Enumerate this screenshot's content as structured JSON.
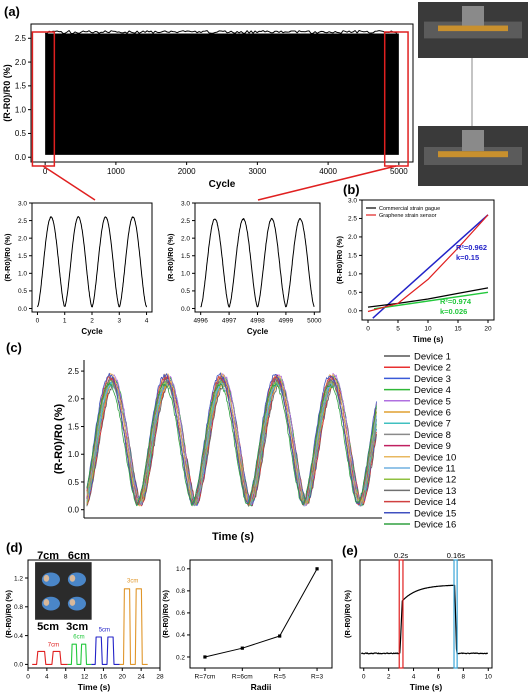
{
  "panels": {
    "a": "(a)",
    "b": "(b)",
    "c": "(c)",
    "d": "(d)",
    "e": "(e)"
  },
  "colors": {
    "red": "#e02020",
    "blue": "#2323c8",
    "green": "#22c83c",
    "orange": "#e0962a",
    "axis": "#000000"
  },
  "chart_data": [
    {
      "id": "a-main",
      "type": "line",
      "xlabel": "Cycle",
      "ylabel": "(R-R0)/R0 (%)",
      "xlim": [
        -200,
        5200
      ],
      "ylim": [
        -0.1,
        2.8
      ],
      "xticks": [
        "0",
        "1000",
        "2000",
        "3000",
        "4000",
        "5000"
      ],
      "yticks": [
        "0.0",
        "0.5",
        "1.0",
        "1.5",
        "2.0",
        "2.5"
      ],
      "series": [
        {
          "x": [
            0,
            5000
          ],
          "y_min": 0.05,
          "y_max": 2.6,
          "note": "dense cyclic signal"
        }
      ]
    },
    {
      "id": "a-zoom-start",
      "type": "line",
      "xlabel": "Cycle",
      "ylabel": "(R-R0)/R0 (%)",
      "xlim": [
        -0.2,
        4.2
      ],
      "ylim": [
        -0.1,
        3.0
      ],
      "xticks": [
        "0",
        "1",
        "2",
        "3",
        "4"
      ],
      "yticks": [
        "0.0",
        "0.5",
        "1.0",
        "1.5",
        "2.0",
        "2.5",
        "3.0"
      ],
      "cycles": 4,
      "peak": 2.6,
      "base": 0.05,
      "x0": 0
    },
    {
      "id": "a-zoom-end",
      "type": "line",
      "xlabel": "Cycle",
      "ylabel": "(R-R0)/R0 (%)",
      "xlim": [
        4995.8,
        5000.2
      ],
      "ylim": [
        -0.1,
        3.0
      ],
      "xticks": [
        "4996",
        "4997",
        "4998",
        "4999",
        "5000"
      ],
      "yticks": [
        "0.0",
        "0.5",
        "1.0",
        "1.5",
        "2.0",
        "2.5",
        "3.0"
      ],
      "cycles": 4,
      "peak": 2.55,
      "base": 0.05,
      "x0": 4996
    },
    {
      "id": "b",
      "type": "line",
      "xlabel": "Time (s)",
      "ylabel": "(R-R0)/R0 (%)",
      "xlim": [
        -1,
        21
      ],
      "ylim": [
        -0.25,
        3.0
      ],
      "xticks": [
        "0",
        "5",
        "10",
        "15",
        "20"
      ],
      "yticks": [
        "0.0",
        "0.5",
        "1.0",
        "1.5",
        "2.0",
        "2.5",
        "3.0"
      ],
      "legend": [
        "Commercial strain gague",
        "Graphene strain sensor"
      ],
      "annotations": {
        "blue": [
          "R²=0.962",
          "k=0.15"
        ],
        "green": [
          "R²=0.974",
          "k=0.026"
        ]
      },
      "series": [
        {
          "name": "Commercial strain gague",
          "color": "#000000",
          "x": [
            0,
            5,
            10,
            15,
            20
          ],
          "y": [
            0.1,
            0.2,
            0.32,
            0.47,
            0.62
          ]
        },
        {
          "name": "Graphene strain sensor",
          "color": "#e02020",
          "x": [
            0,
            5,
            10,
            15,
            20
          ],
          "y": [
            -0.02,
            0.2,
            0.85,
            1.7,
            2.6
          ]
        }
      ],
      "fits": [
        {
          "color": "#2323c8",
          "x": [
            0.8,
            20
          ],
          "y": [
            -0.2,
            2.6
          ]
        },
        {
          "color": "#22c83c",
          "x": [
            1,
            20
          ],
          "y": [
            0.05,
            0.5
          ]
        }
      ]
    },
    {
      "id": "c",
      "type": "line",
      "xlabel": "Time (s)",
      "ylabel": "(R-R0)/R0 (%)",
      "ylim": [
        -0.15,
        2.7
      ],
      "yticks": [
        "0.0",
        "0.5",
        "1.0",
        "1.5",
        "2.0",
        "2.5"
      ],
      "cycles": 5,
      "peak": 2.45,
      "base": 0.1,
      "series": [
        {
          "name": "Device 1",
          "color": "#555555"
        },
        {
          "name": "Device 2",
          "color": "#e83030"
        },
        {
          "name": "Device 3",
          "color": "#3a5ad8"
        },
        {
          "name": "Device 4",
          "color": "#30b838"
        },
        {
          "name": "Device 5",
          "color": "#b070e0"
        },
        {
          "name": "Device 6",
          "color": "#e0a030"
        },
        {
          "name": "Device 7",
          "color": "#40c0c0"
        },
        {
          "name": "Device 8",
          "color": "#8a8a8a"
        },
        {
          "name": "Device 9",
          "color": "#c02060"
        },
        {
          "name": "Device 10",
          "color": "#e8b860"
        },
        {
          "name": "Device 11",
          "color": "#70b0e0"
        },
        {
          "name": "Device 12",
          "color": "#90c040"
        },
        {
          "name": "Device 13",
          "color": "#707070"
        },
        {
          "name": "Device 14",
          "color": "#d04040"
        },
        {
          "name": "Device 15",
          "color": "#4050c0"
        },
        {
          "name": "Device 16",
          "color": "#30a040"
        }
      ]
    },
    {
      "id": "d-left",
      "type": "line",
      "xlabel": "Time (s)",
      "ylabel": "(R-R0)/R0 (%)",
      "xlim": [
        0,
        28
      ],
      "ylim": [
        -0.05,
        1.45
      ],
      "xticks": [
        "0",
        "4",
        "8",
        "12",
        "16",
        "20",
        "24",
        "28"
      ],
      "yticks": [
        "0.0",
        "0.4",
        "0.8",
        "1.2"
      ],
      "inset_labels": [
        "7cm",
        "6cm",
        "5cm",
        "3cm"
      ],
      "series": [
        {
          "name": "7cm",
          "color": "#e02020",
          "x": [
            1.5,
            8
          ],
          "peak": 0.18
        },
        {
          "name": "6cm",
          "color": "#22c83c",
          "x": [
            9,
            13
          ],
          "peak": 0.28
        },
        {
          "name": "5cm",
          "color": "#2323c8",
          "x": [
            14,
            19
          ],
          "peak": 0.38
        },
        {
          "name": "3cm",
          "color": "#e0962a",
          "x": [
            20,
            25
          ],
          "peak": 1.05
        }
      ]
    },
    {
      "id": "d-right",
      "type": "line",
      "xlabel": "Radii",
      "ylabel": "(R-R0)/R0 (%)",
      "ylim": [
        0.1,
        1.08
      ],
      "categories": [
        "R=7cm",
        "R=6cm",
        "R=5",
        "R=3"
      ],
      "yticks": [
        "0.2",
        "0.4",
        "0.6",
        "0.8",
        "1.0"
      ],
      "values": [
        0.2,
        0.28,
        0.39,
        1.0
      ]
    },
    {
      "id": "e",
      "type": "line",
      "xlabel": "Time (s)",
      "ylabel": "(R-R0)/R0 (%)",
      "xlim": [
        -0.3,
        10.3
      ],
      "xticks": [
        "0",
        "2",
        "4",
        "6",
        "8",
        "10"
      ],
      "annotations": [
        "0.2s",
        "0.16s"
      ]
    }
  ]
}
